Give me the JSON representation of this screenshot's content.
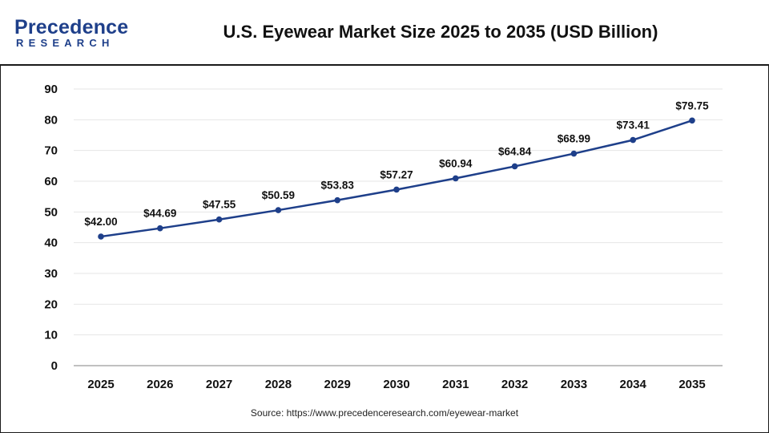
{
  "brand": {
    "name_main": "Precedence",
    "name_sub": "RESEARCH",
    "accent_color": "#1e3f8a"
  },
  "title": "U.S. Eyewear Market Size 2025 to 2035 (USD Billion)",
  "source": "Source: https://www.precedenceresearch.com/eyewear-market",
  "chart_data": {
    "type": "line",
    "title": "U.S. Eyewear Market Size 2025 to 2035 (USD Billion)",
    "xlabel": "",
    "ylabel": "",
    "categories": [
      "2025",
      "2026",
      "2027",
      "2028",
      "2029",
      "2030",
      "2031",
      "2032",
      "2033",
      "2034",
      "2035"
    ],
    "series": [
      {
        "values": [
          42.0,
          44.69,
          47.55,
          50.59,
          53.83,
          57.27,
          60.94,
          64.84,
          68.99,
          73.41,
          79.75
        ],
        "labels": [
          "$42.00",
          "$44.69",
          "$47.55",
          "$50.59",
          "$53.83",
          "$57.27",
          "$60.94",
          "$64.84",
          "$68.99",
          "$73.41",
          "$79.75"
        ],
        "color": "#1e3f8a"
      }
    ],
    "ylim": [
      0,
      90
    ],
    "yticks": [
      "0",
      "10",
      "20",
      "30",
      "40",
      "50",
      "60",
      "70",
      "80",
      "90"
    ],
    "grid": true,
    "legend": "none"
  }
}
